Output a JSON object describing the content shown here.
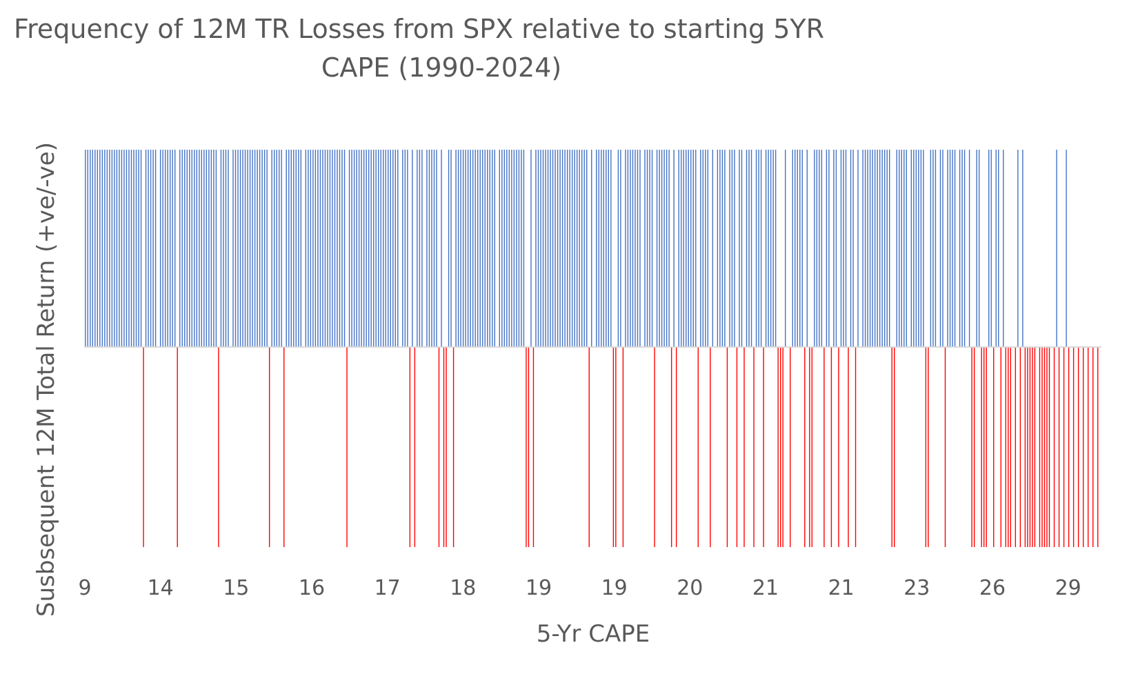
{
  "chart_data": {
    "type": "bar",
    "title_line1": "Frequency of 12M TR Losses from SPX relative to starting 5YR",
    "title_line2": "CAPE (1990-2024)",
    "xlabel": "5-Yr CAPE",
    "ylabel": "Susbsequent 12M Total Return (+ve/-ve)",
    "x_tick_labels": [
      "9",
      "14",
      "15",
      "16",
      "17",
      "18",
      "19",
      "19",
      "20",
      "21",
      "21",
      "23",
      "26",
      "29"
    ],
    "ylim": [
      -1,
      1
    ],
    "n_observations": 420,
    "negative_observation_indices": [
      24,
      38,
      55,
      76,
      82,
      108,
      134,
      136,
      146,
      148,
      149,
      152,
      182,
      183,
      185,
      208,
      218,
      219,
      222,
      235,
      242,
      244,
      253,
      258,
      265,
      269,
      272,
      276,
      280,
      286,
      287,
      288,
      291,
      297,
      299,
      300,
      305,
      308,
      311,
      315,
      318,
      333,
      334,
      347,
      348,
      355,
      366,
      367,
      370,
      371,
      372,
      375,
      378,
      380,
      381,
      382,
      384,
      386,
      388,
      389,
      390,
      391,
      392,
      394,
      395,
      396,
      397,
      398,
      400,
      402,
      404,
      406,
      408,
      410,
      412,
      414,
      416,
      418
    ],
    "gap_observation_indices": [
      30,
      60,
      90,
      130,
      140,
      170,
      210,
      230,
      260,
      290,
      320,
      340,
      352,
      360,
      364,
      383,
      393,
      399,
      403,
      407,
      409,
      411,
      413,
      415,
      417,
      419
    ],
    "colors": {
      "positive": "#4472C4",
      "negative": "#FF0000",
      "axis": "#D9D9D9"
    }
  }
}
